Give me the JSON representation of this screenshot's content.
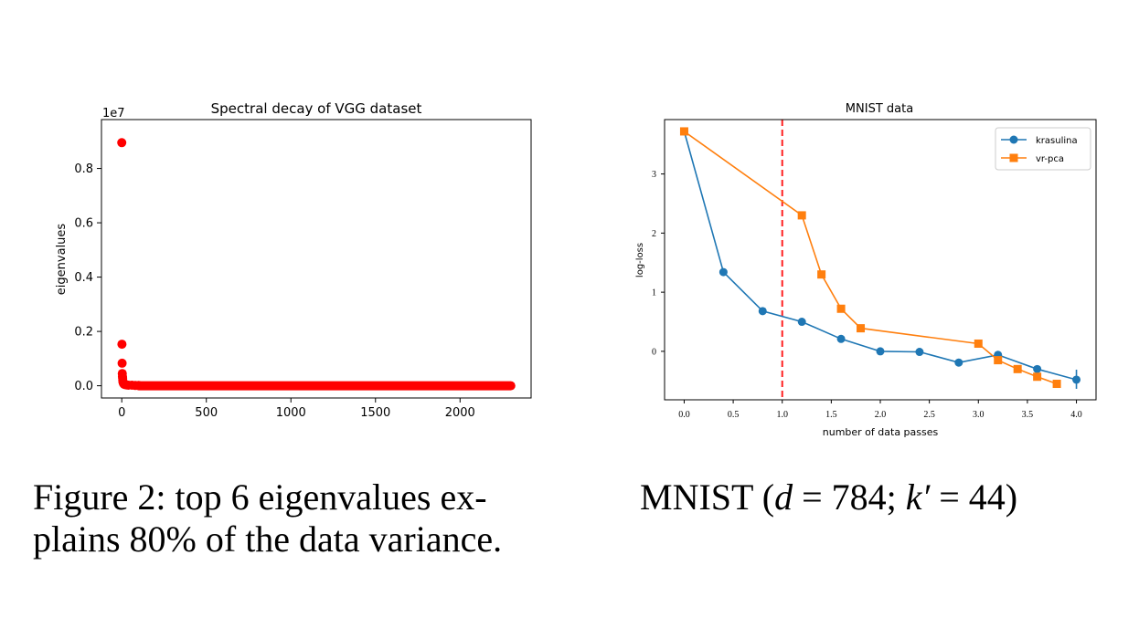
{
  "chart_data": [
    {
      "type": "scatter",
      "title": "Spectral decay of VGG dataset",
      "xlabel": "",
      "ylabel": "eigenvalues",
      "offset_text": "1e7",
      "xlim": [
        -120,
        2420
      ],
      "ylim": [
        -0.045,
        0.98
      ],
      "x_ticks": [
        0,
        500,
        1000,
        1500,
        2000
      ],
      "x_tick_labels": [
        "0",
        "500",
        "1000",
        "1500",
        "2000"
      ],
      "y_ticks": [
        0.0,
        0.2,
        0.4,
        0.6,
        0.8
      ],
      "y_tick_labels": [
        "0.0",
        "0.2",
        "0.4",
        "0.6",
        "0.8"
      ],
      "grid": false,
      "color": "#ff0000",
      "series": [
        {
          "x": [
            0,
            1,
            2,
            3,
            4,
            5,
            6,
            7,
            8,
            10,
            12,
            15,
            20,
            30,
            40,
            60,
            80,
            100
          ],
          "y": [
            0.895,
            0.153,
            0.083,
            0.045,
            0.035,
            0.028,
            0.02,
            0.015,
            0.012,
            0.009,
            0.007,
            0.005,
            0.004,
            0.003,
            0.002,
            0.002,
            0.001,
            0.001
          ]
        }
      ],
      "tail": {
        "x_start": 100,
        "x_end": 2300,
        "y": 0.0
      }
    },
    {
      "type": "line",
      "title": "MNIST data",
      "xlabel": "number of data passes",
      "ylabel": "log-loss",
      "xlim": [
        -0.2,
        4.2
      ],
      "ylim": [
        -0.82,
        3.92
      ],
      "x_ticks": [
        0.0,
        0.5,
        1.0,
        1.5,
        2.0,
        2.5,
        3.0,
        3.5,
        4.0
      ],
      "x_tick_labels": [
        "0.0",
        "0.5",
        "1.0",
        "1.5",
        "2.0",
        "2.5",
        "3.0",
        "3.5",
        "4.0"
      ],
      "y_ticks": [
        0,
        1,
        2,
        3
      ],
      "y_tick_labels": [
        "0",
        "1",
        "2",
        "3"
      ],
      "grid": false,
      "legend_position": "top-right",
      "vline": {
        "x": 1.0,
        "color": "#ff2020",
        "style": "dashed"
      },
      "series": [
        {
          "name": "krasulina",
          "color": "#1f77b4",
          "marker": "circle",
          "x": [
            0.0,
            0.4,
            0.8,
            1.2,
            1.6,
            2.0,
            2.4,
            2.8,
            3.2,
            3.6,
            4.0
          ],
          "y": [
            3.72,
            1.34,
            0.68,
            0.5,
            0.21,
            0.0,
            -0.01,
            -0.19,
            -0.06,
            -0.3,
            -0.48
          ]
        },
        {
          "name": "vr-pca",
          "color": "#ff7f0e",
          "marker": "square",
          "x": [
            0.0,
            1.2,
            1.4,
            1.6,
            1.8,
            3.0,
            3.2,
            3.4,
            3.6,
            3.8
          ],
          "y": [
            3.72,
            2.3,
            1.3,
            0.72,
            0.39,
            0.13,
            -0.15,
            -0.3,
            -0.43,
            -0.55
          ]
        }
      ]
    }
  ],
  "captions": {
    "left_line1": "Figure 2:  top 6 eigenvalues ex-",
    "left_line2": "plains 80% of the data variance.",
    "right_prefix": "MNIST (",
    "right_d": "d",
    "right_eq1": " = 784; ",
    "right_k": "k′",
    "right_eq2": " = 44)"
  }
}
